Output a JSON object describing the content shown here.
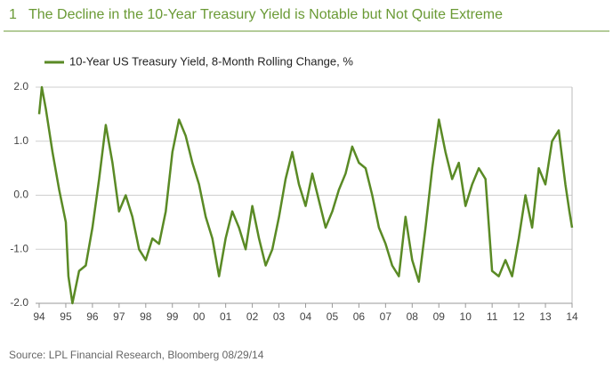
{
  "figure_number": "1",
  "source": "Source: LPL Financial Research, Bloomberg   08/29/14",
  "chart_data": {
    "type": "line",
    "title": "The Decline in the 10-Year Treasury Yield is Notable but Not Quite Extreme",
    "x": [
      1994.0,
      1994.1,
      1994.25,
      1994.5,
      1994.75,
      1995.0,
      1995.1,
      1995.25,
      1995.5,
      1995.75,
      1996.0,
      1996.25,
      1996.5,
      1996.75,
      1997.0,
      1997.25,
      1997.5,
      1997.75,
      1998.0,
      1998.25,
      1998.5,
      1998.75,
      1999.0,
      1999.25,
      1999.5,
      1999.75,
      2000.0,
      2000.25,
      2000.5,
      2000.75,
      2001.0,
      2001.25,
      2001.5,
      2001.75,
      2002.0,
      2002.25,
      2002.5,
      2002.75,
      2003.0,
      2003.25,
      2003.5,
      2003.75,
      2004.0,
      2004.25,
      2004.5,
      2004.75,
      2005.0,
      2005.25,
      2005.5,
      2005.75,
      2006.0,
      2006.25,
      2006.5,
      2006.75,
      2007.0,
      2007.25,
      2007.5,
      2007.75,
      2008.0,
      2008.25,
      2008.5,
      2008.75,
      2009.0,
      2009.25,
      2009.5,
      2009.75,
      2010.0,
      2010.25,
      2010.5,
      2010.75,
      2011.0,
      2011.25,
      2011.5,
      2011.75,
      2012.0,
      2012.25,
      2012.5,
      2012.75,
      2013.0,
      2013.25,
      2013.5,
      2013.75,
      2013.9,
      2014.0
    ],
    "series": [
      {
        "name": "10-Year US Treasury Yield, 8-Month Rolling Change, %",
        "color": "#5a8a25",
        "values": [
          1.5,
          2.0,
          1.6,
          0.8,
          0.1,
          -0.5,
          -1.5,
          -2.0,
          -1.4,
          -1.3,
          -0.6,
          0.3,
          1.3,
          0.6,
          -0.3,
          0.0,
          -0.4,
          -1.0,
          -1.2,
          -0.8,
          -0.9,
          -0.3,
          0.8,
          1.4,
          1.1,
          0.6,
          0.2,
          -0.4,
          -0.8,
          -1.5,
          -0.8,
          -0.3,
          -0.6,
          -1.0,
          -0.2,
          -0.8,
          -1.3,
          -1.0,
          -0.4,
          0.3,
          0.8,
          0.2,
          -0.2,
          0.4,
          -0.1,
          -0.6,
          -0.3,
          0.1,
          0.4,
          0.9,
          0.6,
          0.5,
          0.0,
          -0.6,
          -0.9,
          -1.3,
          -1.5,
          -0.4,
          -1.2,
          -1.6,
          -0.6,
          0.5,
          1.4,
          0.8,
          0.3,
          0.6,
          -0.2,
          0.2,
          0.5,
          0.3,
          -1.4,
          -1.5,
          -1.2,
          -1.5,
          -0.8,
          0.0,
          -0.6,
          0.5,
          0.2,
          1.0,
          1.2,
          0.2,
          -0.3,
          -0.6
        ]
      }
    ],
    "xlim": [
      1994,
      2014
    ],
    "xticks": [
      {
        "value": 1994,
        "label": "94"
      },
      {
        "value": 1995,
        "label": "95"
      },
      {
        "value": 1996,
        "label": "96"
      },
      {
        "value": 1997,
        "label": "97"
      },
      {
        "value": 1998,
        "label": "98"
      },
      {
        "value": 1999,
        "label": "99"
      },
      {
        "value": 2000,
        "label": "00"
      },
      {
        "value": 2001,
        "label": "01"
      },
      {
        "value": 2002,
        "label": "02"
      },
      {
        "value": 2003,
        "label": "03"
      },
      {
        "value": 2004,
        "label": "04"
      },
      {
        "value": 2005,
        "label": "05"
      },
      {
        "value": 2006,
        "label": "06"
      },
      {
        "value": 2007,
        "label": "07"
      },
      {
        "value": 2008,
        "label": "08"
      },
      {
        "value": 2009,
        "label": "09"
      },
      {
        "value": 2010,
        "label": "10"
      },
      {
        "value": 2011,
        "label": "11"
      },
      {
        "value": 2012,
        "label": "12"
      },
      {
        "value": 2013,
        "label": "13"
      },
      {
        "value": 2014,
        "label": "14"
      }
    ],
    "ylim": [
      -2,
      2
    ],
    "yticks": [
      {
        "value": -2,
        "label": "-2.0"
      },
      {
        "value": -1,
        "label": "-1.0"
      },
      {
        "value": 0,
        "label": "0.0"
      },
      {
        "value": 1,
        "label": "1.0"
      },
      {
        "value": 2,
        "label": "2.0"
      }
    ],
    "grid": true
  }
}
